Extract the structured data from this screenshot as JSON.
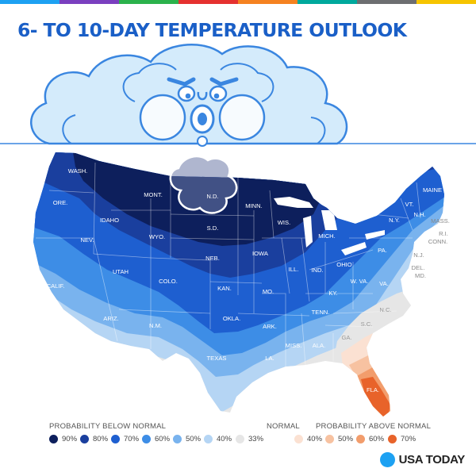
{
  "title": "6- TO 10-DAY TEMPERATURE OUTLOOK",
  "top_bar_colors": [
    "#1da1f2",
    "#7a3fbf",
    "#2bb24c",
    "#e5312f",
    "#f58220",
    "#00a99d",
    "#6d6e71",
    "#f6c400"
  ],
  "states": [
    {
      "name": "WASH.",
      "color": "#ffffff"
    },
    {
      "name": "ORE.",
      "color": "#ffffff"
    },
    {
      "name": "IDAHO",
      "color": "#ffffff"
    },
    {
      "name": "MONT.",
      "color": "#ffffff"
    },
    {
      "name": "N.D.",
      "color": "#ffffff"
    },
    {
      "name": "MINN.",
      "color": "#ffffff"
    },
    {
      "name": "S.D.",
      "color": "#ffffff"
    },
    {
      "name": "WYO.",
      "color": "#ffffff"
    },
    {
      "name": "NEV.",
      "color": "#ffffff"
    },
    {
      "name": "WIS.",
      "color": "#ffffff"
    },
    {
      "name": "MICH.",
      "color": "#ffffff"
    },
    {
      "name": "IOWA",
      "color": "#ffffff"
    },
    {
      "name": "NEB.",
      "color": "#ffffff"
    },
    {
      "name": "UTAH",
      "color": "#ffffff"
    },
    {
      "name": "COLO.",
      "color": "#ffffff"
    },
    {
      "name": "CALIF.",
      "color": "#ffffff"
    },
    {
      "name": "ILL.",
      "color": "#ffffff"
    },
    {
      "name": "IND.",
      "color": "#ffffff"
    },
    {
      "name": "OHIO",
      "color": "#ffffff"
    },
    {
      "name": "KAN.",
      "color": "#ffffff"
    },
    {
      "name": "MO.",
      "color": "#ffffff"
    },
    {
      "name": "KY.",
      "color": "#ffffff"
    },
    {
      "name": "W. VA.",
      "color": "#ffffff"
    },
    {
      "name": "VA.",
      "color": "#ffffff"
    },
    {
      "name": "OKLA.",
      "color": "#ffffff"
    },
    {
      "name": "ARIZ.",
      "color": "#ffffff"
    },
    {
      "name": "N.M.",
      "color": "#ffffff"
    },
    {
      "name": "ARK.",
      "color": "#ffffff"
    },
    {
      "name": "TENN.",
      "color": "#ffffff"
    },
    {
      "name": "N.C.",
      "color": "#999999"
    },
    {
      "name": "S.C.",
      "color": "#999999"
    },
    {
      "name": "GA.",
      "color": "#999999"
    },
    {
      "name": "ALA.",
      "color": "#ffffff"
    },
    {
      "name": "MISS.",
      "color": "#ffffff"
    },
    {
      "name": "LA.",
      "color": "#ffffff"
    },
    {
      "name": "TEXAS",
      "color": "#ffffff"
    },
    {
      "name": "FLA.",
      "color": "#ffffff"
    },
    {
      "name": "PA.",
      "color": "#ffffff"
    },
    {
      "name": "N.Y.",
      "color": "#ffffff"
    },
    {
      "name": "VT.",
      "color": "#ffffff"
    },
    {
      "name": "N.H.",
      "color": "#ffffff"
    },
    {
      "name": "MAINE",
      "color": "#ffffff"
    },
    {
      "name": "MASS.",
      "color": "#888888"
    },
    {
      "name": "R.I.",
      "color": "#888888"
    },
    {
      "name": "CONN.",
      "color": "#888888"
    },
    {
      "name": "N.J.",
      "color": "#888888"
    },
    {
      "name": "DEL.",
      "color": "#888888"
    },
    {
      "name": "MD.",
      "color": "#888888"
    }
  ],
  "legend": {
    "below_header": "PROBABILITY BELOW NORMAL",
    "normal_header": "NORMAL",
    "above_header": "PROBABILITY ABOVE NORMAL",
    "items": [
      {
        "label": "90%",
        "color": "#0d1f5c"
      },
      {
        "label": "80%",
        "color": "#1a3f9e"
      },
      {
        "label": "70%",
        "color": "#1e5fd0"
      },
      {
        "label": "60%",
        "color": "#3d8de6"
      },
      {
        "label": "50%",
        "color": "#79b3ee"
      },
      {
        "label": "40%",
        "color": "#b5d5f4"
      },
      {
        "label": "33%",
        "color": "#e6e6e6"
      },
      {
        "label": "40%",
        "color": "#fbe1d2"
      },
      {
        "label": "50%",
        "color": "#f7c2a1"
      },
      {
        "label": "60%",
        "color": "#f29d6c"
      },
      {
        "label": "70%",
        "color": "#e8632a"
      }
    ]
  },
  "brand": "USA TODAY",
  "brand_color": "#1da1f2"
}
